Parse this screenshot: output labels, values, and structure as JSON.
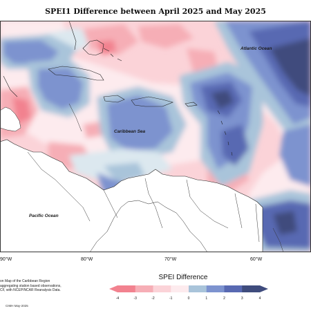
{
  "title": "SPEI1 Difference between April 2025 and May 2025",
  "map": {
    "ocean_labels": {
      "atlantic": "Atlantic Ocean",
      "caribbean": "Caribbean Sea",
      "pacific": "Pacific Ocean"
    },
    "longitude_labels": [
      "90°W",
      "80°W",
      "70°W",
      "60°W"
    ]
  },
  "legend": {
    "title": "SPEI Difference",
    "ticks": [
      "-4",
      "-3",
      "-2",
      "-1",
      "0",
      "1",
      "2",
      "3",
      "4"
    ],
    "colors": [
      "#f2828f",
      "#f6aeb6",
      "#fbd3d8",
      "#fdebee",
      "#dce8ef",
      "#a9c4da",
      "#7d93cf",
      "#5869b2",
      "#3f4c7d"
    ]
  },
  "footer": {
    "note_lines": [
      "on Map of the Caribbean Region",
      "aggregating station based observations,",
      "CF, with NCEP/NCAR Reanalysis Data."
    ],
    "credit": "CIMH May-2025"
  }
}
